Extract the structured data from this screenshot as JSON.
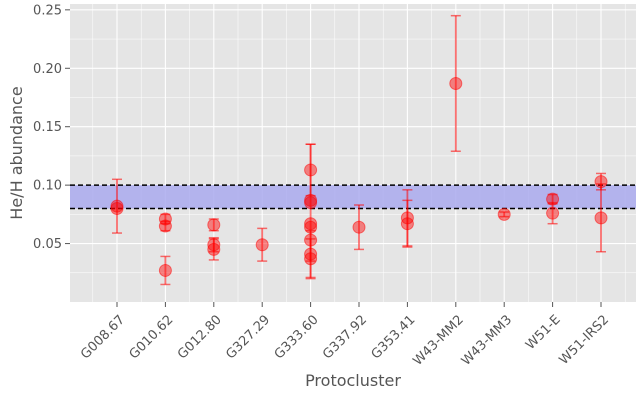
{
  "chart_data": {
    "type": "scatter",
    "xlabel": "Protocluster",
    "ylabel": "He/H abundance",
    "ylim": [
      0.0,
      0.255
    ],
    "yticks": [
      "0.05",
      "0.10",
      "0.15",
      "0.20",
      "0.25"
    ],
    "ytick_values": [
      0.05,
      0.1,
      0.15,
      0.2,
      0.25
    ],
    "categories": [
      "G008.67",
      "G010.62",
      "G012.80",
      "G327.29",
      "G333.60",
      "G337.92",
      "G353.41",
      "W43-MM2",
      "W43-MM3",
      "W51-E",
      "W51-IRS2"
    ],
    "grid": true,
    "band": {
      "lower": 0.08,
      "upper": 0.1,
      "color": "#aaaaee"
    },
    "point_color": "#ff0000",
    "background_color": "#e5e5e5",
    "points": [
      {
        "category": "G008.67",
        "y": 0.082,
        "err_low": 0.023,
        "err_high": 0.023
      },
      {
        "category": "G008.67",
        "y": 0.08,
        "err_low": 0.0,
        "err_high": 0.0
      },
      {
        "category": "G010.62",
        "y": 0.071,
        "err_low": 0.004,
        "err_high": 0.004
      },
      {
        "category": "G010.62",
        "y": 0.065,
        "err_low": 0.004,
        "err_high": 0.004
      },
      {
        "category": "G010.62",
        "y": 0.027,
        "err_low": 0.012,
        "err_high": 0.012
      },
      {
        "category": "G012.80",
        "y": 0.066,
        "err_low": 0.005,
        "err_high": 0.005
      },
      {
        "category": "G012.80",
        "y": 0.049,
        "err_low": 0.006,
        "err_high": 0.006
      },
      {
        "category": "G012.80",
        "y": 0.045,
        "err_low": 0.009,
        "err_high": 0.009
      },
      {
        "category": "G327.29",
        "y": 0.049,
        "err_low": 0.014,
        "err_high": 0.014
      },
      {
        "category": "G333.60",
        "y": 0.113,
        "err_low": 0.022,
        "err_high": 0.022
      },
      {
        "category": "G333.60",
        "y": 0.087,
        "err_low": 0.0,
        "err_high": 0.0
      },
      {
        "category": "G333.60",
        "y": 0.085,
        "err_low": 0.05,
        "err_high": 0.05
      },
      {
        "category": "G333.60",
        "y": 0.067,
        "err_low": 0.0,
        "err_high": 0.0
      },
      {
        "category": "G333.60",
        "y": 0.064,
        "err_low": 0.0,
        "err_high": 0.0
      },
      {
        "category": "G333.60",
        "y": 0.053,
        "err_low": 0.0,
        "err_high": 0.0
      },
      {
        "category": "G333.60",
        "y": 0.041,
        "err_low": 0.02,
        "err_high": 0.02
      },
      {
        "category": "G333.60",
        "y": 0.037,
        "err_low": 0.017,
        "err_high": 0.017
      },
      {
        "category": "G337.92",
        "y": 0.064,
        "err_low": 0.019,
        "err_high": 0.019
      },
      {
        "category": "G353.41",
        "y": 0.072,
        "err_low": 0.024,
        "err_high": 0.024
      },
      {
        "category": "G353.41",
        "y": 0.067,
        "err_low": 0.02,
        "err_high": 0.02
      },
      {
        "category": "W43-MM2",
        "y": 0.187,
        "err_low": 0.058,
        "err_high": 0.058
      },
      {
        "category": "W43-MM3",
        "y": 0.075,
        "err_low": 0.002,
        "err_high": 0.002
      },
      {
        "category": "W51-E",
        "y": 0.088,
        "err_low": 0.004,
        "err_high": 0.004
      },
      {
        "category": "W51-E",
        "y": 0.076,
        "err_low": 0.009,
        "err_high": 0.009
      },
      {
        "category": "W51-IRS2",
        "y": 0.103,
        "err_low": 0.007,
        "err_high": 0.007
      },
      {
        "category": "W51-IRS2",
        "y": 0.072,
        "err_low": 0.029,
        "err_high": 0.029
      }
    ]
  }
}
